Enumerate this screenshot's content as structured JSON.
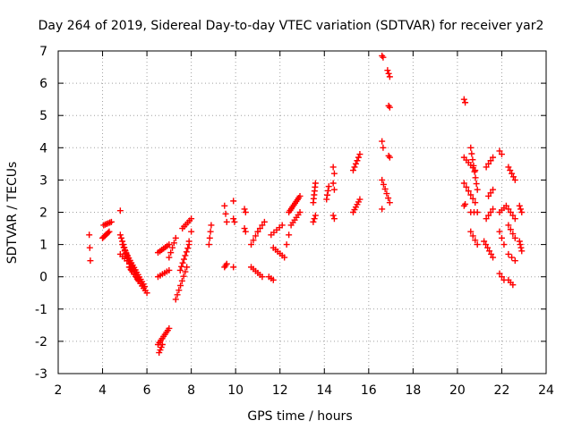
{
  "chart_data": {
    "type": "scatter",
    "title": "Day 264 of 2019, Sidereal Day-to-day VTEC variation (SDTVAR) for receiver yar2",
    "xlabel": "GPS time / hours",
    "ylabel": "SDTVAR / TECUs",
    "xlim": [
      2,
      24
    ],
    "ylim": [
      -3,
      7
    ],
    "xticks": [
      2,
      4,
      6,
      8,
      10,
      12,
      14,
      16,
      18,
      20,
      22,
      24
    ],
    "yticks": [
      -3,
      -2,
      -1,
      0,
      1,
      2,
      3,
      4,
      5,
      6,
      7
    ],
    "grid": true,
    "marker": "+",
    "color": "#ff0000",
    "segments": [
      [
        3.4,
        1.3,
        3.45,
        0.5,
        3
      ],
      [
        4.0,
        1.2,
        4.3,
        1.4,
        7
      ],
      [
        4.05,
        1.6,
        4.4,
        1.7,
        6
      ],
      [
        4.8,
        2.05,
        4.8,
        2.05,
        1
      ],
      [
        4.8,
        1.3,
        5.3,
        0.2,
        12
      ],
      [
        4.9,
        1.0,
        5.6,
        -0.1,
        14
      ],
      [
        5.0,
        0.8,
        5.9,
        -0.3,
        16
      ],
      [
        5.2,
        0.3,
        6.0,
        -0.5,
        12
      ],
      [
        4.8,
        0.7,
        5.1,
        0.5,
        4
      ],
      [
        6.5,
        -2.1,
        7.0,
        -1.6,
        9
      ],
      [
        6.55,
        -2.35,
        6.7,
        -2.1,
        4
      ],
      [
        6.5,
        0.75,
        7.0,
        1.0,
        7
      ],
      [
        6.5,
        0.0,
        7.0,
        0.2,
        6
      ],
      [
        7.0,
        0.6,
        7.3,
        1.2,
        5
      ],
      [
        7.3,
        -0.7,
        7.8,
        0.3,
        8
      ],
      [
        7.5,
        0.2,
        7.9,
        1.0,
        8
      ],
      [
        7.6,
        1.5,
        8.0,
        1.8,
        6
      ],
      [
        7.9,
        1.1,
        8.0,
        1.4,
        2
      ],
      [
        8.8,
        1.0,
        8.9,
        1.6,
        4
      ],
      [
        9.5,
        0.3,
        9.6,
        0.4,
        3
      ],
      [
        9.5,
        2.2,
        9.6,
        1.7,
        3
      ],
      [
        9.9,
        2.35,
        9.95,
        2.35,
        1
      ],
      [
        9.9,
        1.8,
        9.95,
        1.7,
        2
      ],
      [
        9.9,
        0.3,
        9.95,
        0.3,
        1
      ],
      [
        10.4,
        2.1,
        10.45,
        2.0,
        2
      ],
      [
        10.4,
        1.5,
        10.45,
        1.4,
        2
      ],
      [
        10.7,
        0.3,
        11.2,
        0.0,
        6
      ],
      [
        10.7,
        1.0,
        11.0,
        1.4,
        4
      ],
      [
        11.0,
        1.4,
        11.3,
        1.7,
        4
      ],
      [
        11.5,
        0.0,
        11.7,
        -0.1,
        3
      ],
      [
        11.6,
        1.3,
        12.1,
        1.6,
        5
      ],
      [
        11.7,
        0.9,
        12.2,
        0.6,
        6
      ],
      [
        12.3,
        1.0,
        12.4,
        1.3,
        2
      ],
      [
        12.4,
        2.0,
        12.9,
        2.5,
        10
      ],
      [
        12.5,
        1.6,
        12.9,
        2.0,
        6
      ],
      [
        13.5,
        2.3,
        13.6,
        2.9,
        6
      ],
      [
        13.5,
        1.7,
        13.6,
        1.9,
        3
      ],
      [
        14.1,
        2.4,
        14.2,
        2.8,
        4
      ],
      [
        14.4,
        3.4,
        14.45,
        3.2,
        2
      ],
      [
        14.4,
        2.9,
        14.45,
        2.7,
        2
      ],
      [
        14.4,
        1.9,
        14.45,
        1.8,
        2
      ],
      [
        15.3,
        3.3,
        15.6,
        3.8,
        6
      ],
      [
        15.3,
        2.0,
        15.6,
        2.4,
        6
      ],
      [
        16.6,
        6.85,
        16.65,
        6.8,
        2
      ],
      [
        16.85,
        6.4,
        16.95,
        6.2,
        3
      ],
      [
        16.9,
        5.3,
        16.95,
        5.25,
        2
      ],
      [
        16.6,
        4.2,
        16.65,
        4.0,
        2
      ],
      [
        16.9,
        3.75,
        16.95,
        3.7,
        2
      ],
      [
        16.6,
        3.0,
        16.95,
        2.3,
        6
      ],
      [
        16.6,
        2.1,
        16.6,
        2.1,
        1
      ],
      [
        20.3,
        5.5,
        20.35,
        5.4,
        2
      ],
      [
        20.3,
        3.7,
        20.8,
        3.3,
        6
      ],
      [
        20.3,
        2.9,
        20.8,
        2.3,
        6
      ],
      [
        20.3,
        2.2,
        20.35,
        2.25,
        2
      ],
      [
        20.6,
        4.0,
        20.9,
        2.7,
        8
      ],
      [
        20.6,
        2.0,
        20.9,
        2.0,
        3
      ],
      [
        20.6,
        1.4,
        20.9,
        1.0,
        4
      ],
      [
        21.3,
        3.4,
        21.6,
        3.7,
        4
      ],
      [
        21.4,
        2.5,
        21.6,
        2.7,
        3
      ],
      [
        21.3,
        1.8,
        21.6,
        2.1,
        4
      ],
      [
        21.2,
        1.1,
        21.6,
        0.6,
        6
      ],
      [
        21.9,
        3.9,
        22.0,
        3.8,
        2
      ],
      [
        21.9,
        2.0,
        22.2,
        2.2,
        4
      ],
      [
        21.9,
        1.4,
        22.1,
        1.0,
        3
      ],
      [
        21.9,
        0.1,
        22.1,
        -0.1,
        3
      ],
      [
        22.3,
        3.4,
        22.6,
        3.0,
        5
      ],
      [
        22.3,
        2.1,
        22.6,
        1.8,
        4
      ],
      [
        22.3,
        1.6,
        22.6,
        1.2,
        4
      ],
      [
        22.3,
        0.7,
        22.6,
        0.5,
        3
      ],
      [
        22.3,
        -0.1,
        22.5,
        -0.25,
        3
      ],
      [
        22.8,
        2.2,
        22.9,
        2.0,
        3
      ],
      [
        22.8,
        1.1,
        22.9,
        0.8,
        4
      ]
    ]
  }
}
